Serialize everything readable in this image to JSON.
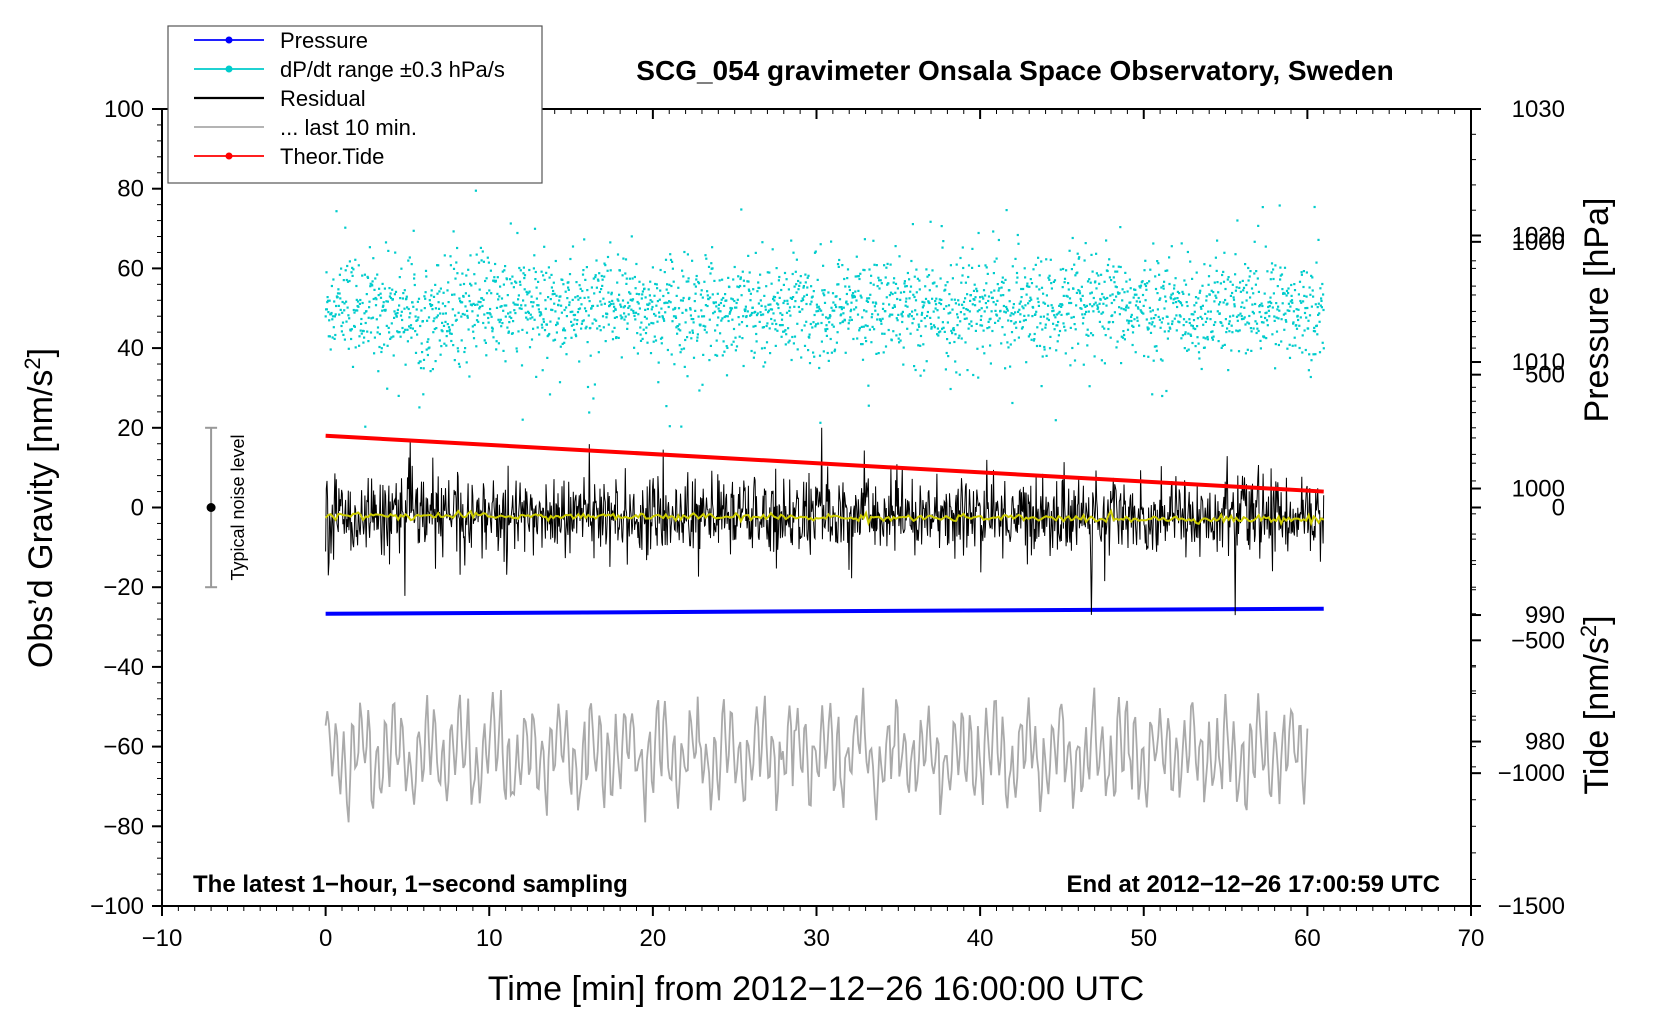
{
  "chart_data": {
    "type": "line",
    "title": "SCG_054 gravimeter Onsala Space Observatory, Sweden",
    "xlabel": "Time [min] from 2012−12−26 16:00:00 UTC",
    "xlim": [
      -10,
      70
    ],
    "x_ticks": [
      "−10",
      "0",
      "10",
      "20",
      "30",
      "40",
      "50",
      "60",
      "70"
    ],
    "left_axis": {
      "label": "Obs’d Gravity [nm/s",
      "label_sup": "2",
      "label_end": "]",
      "ylim": [
        -100,
        100
      ],
      "ticks": [
        "−100",
        "−80",
        "−60",
        "−40",
        "−20",
        "0",
        "20",
        "40",
        "60",
        "80",
        "100"
      ]
    },
    "pressure_axis": {
      "label": "Pressure [hPa]",
      "ticks": [
        "980",
        "990",
        "1000",
        "1010",
        "1020",
        "1030"
      ],
      "ylim": [
        967,
        1030
      ]
    },
    "tide_axis": {
      "label": "Tide [nm/s",
      "label_sup": "2",
      "label_end": "]",
      "ticks": [
        "−1500",
        "−1000",
        "−500",
        "0",
        "500",
        "1000"
      ],
      "ylim": [
        -1500,
        1500
      ]
    },
    "legend": {
      "placement": "top-left",
      "entries": [
        {
          "name": "Pressure",
          "color": "#0000ff",
          "marker": true
        },
        {
          "name": "dP/dt range ±0.3 hPa/s",
          "color": "#00cccc",
          "marker": true
        },
        {
          "name": "Residual",
          "color": "#000000",
          "marker": false
        },
        {
          "name": "... last 10 min.",
          "color": "#aaaaaa",
          "marker": false
        },
        {
          "name": "Theor.Tide",
          "color": "#ff0000",
          "marker": true
        }
      ]
    },
    "series": [
      {
        "name": "Pressure",
        "axis": "pressure",
        "x": [
          0,
          61
        ],
        "values": [
          990.1,
          990.5
        ],
        "color": "#0000ff"
      },
      {
        "name": "dP/dt range ±0.3 hPa/s",
        "axis": "left",
        "x": [
          0,
          61
        ],
        "band": [
          20,
          82
        ],
        "center": 50,
        "color": "#00cccc"
      },
      {
        "name": "Residual",
        "axis": "left",
        "x": [
          0,
          61
        ],
        "band": [
          -27,
          20
        ],
        "center": -2,
        "color": "#000000"
      },
      {
        "name": "Residual (smoothed)",
        "axis": "left",
        "x": [
          0,
          61
        ],
        "values": [
          -2,
          -3
        ],
        "color": "#cccc00"
      },
      {
        "name": "Theor.Tide",
        "axis": "tide",
        "x": [
          0,
          61
        ],
        "values": [
          270,
          60
        ],
        "color": "#ff0000"
      },
      {
        "name": "... last 10 min.",
        "axis": "left",
        "x": [
          0,
          60
        ],
        "band": [
          -79,
          -39
        ],
        "center": -62,
        "color": "#aaaaaa"
      }
    ],
    "noise_bar": {
      "label": "Typical noise level",
      "x": -7,
      "low": -20,
      "high": 20
    },
    "annotations": {
      "bottom_left": "The latest 1−hour, 1−second sampling",
      "bottom_right": "End at 2012−12−26 17:00:59 UTC"
    },
    "grid": false
  }
}
